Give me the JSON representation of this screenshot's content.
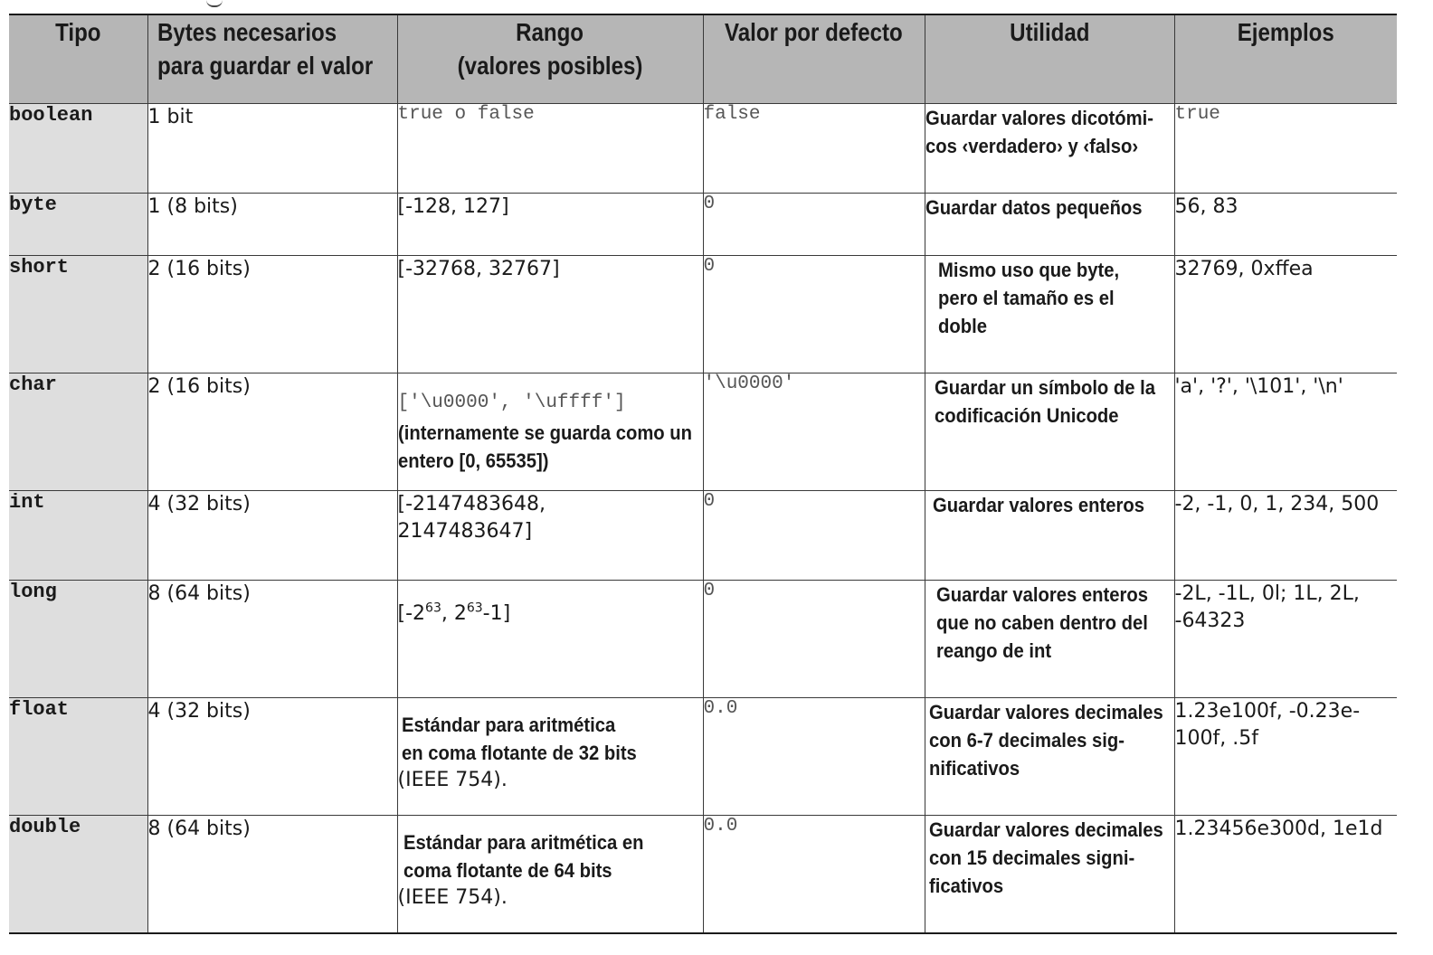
{
  "headers": {
    "tipo": "Tipo",
    "bytes_line1": "Bytes necesarios",
    "bytes_line2": "para guardar el valor",
    "rango_line1": "Rango",
    "rango_line2": "(valores posibles)",
    "defecto": "Valor por defecto",
    "utilidad": "Utilidad",
    "ejemplos": "Ejemplos"
  },
  "rows": {
    "boolean": {
      "tipo": "boolean",
      "bytes": "1 bit",
      "rango": "true o false",
      "defecto": "false",
      "utilidad": "Guardar valores dicotómi-cos ‹verdadero› y ‹falso›",
      "ejemplos": "true"
    },
    "byte": {
      "tipo": "byte",
      "bytes": "1 (8 bits)",
      "rango": "[-128, 127]",
      "defecto": "0",
      "utilidad": "Guardar datos pequeños",
      "ejemplos": "56, 83"
    },
    "short": {
      "tipo": "short",
      "bytes": "2 (16 bits)",
      "rango": "[-32768, 32767]",
      "defecto": "0",
      "utilidad": "Mismo uso que byte, pero el tamaño es el doble",
      "ejemplos": "32769, 0xffea"
    },
    "char": {
      "tipo": "char",
      "bytes": "2 (16 bits)",
      "rango_code": "['\\u0000', '\\uffff']",
      "rango_note": "(internamente se guarda como un entero [0, 65535])",
      "defecto": "'\\u0000'",
      "utilidad": "Guardar un símbolo de la codificación Unicode",
      "ejemplos": "'a', '?', '\\101', '\\n'"
    },
    "int": {
      "tipo": "int",
      "bytes": "4 (32 bits)",
      "rango": "[-2147483648, 2147483647]",
      "defecto": "0",
      "utilidad": "Guardar valores enteros",
      "ejemplos": "-2, -1, 0, 1, 234, 500"
    },
    "long": {
      "tipo": "long",
      "bytes": "8 (64 bits)",
      "rango_a": "[-2",
      "rango_exp1": "63",
      "rango_b": ", 2",
      "rango_exp2": "63",
      "rango_c": "-1]",
      "defecto": "0",
      "utilidad": "Guardar valores enteros que no caben dentro del reango de int",
      "ejemplos": "-2L, -1L, 0l; 1L, 2L, -64323"
    },
    "float": {
      "tipo": "float",
      "bytes": "4 (32 bits)",
      "rango_bold": "Estándar para aritmética en coma flotante de 32 bits",
      "rango_plain": "(IEEE 754).",
      "defecto": "0.0",
      "utilidad": "Guardar valores decimales con 6-7 decimales sig-nificativos",
      "ejemplos": "1.23e100f, -0.23e-100f, .5f"
    },
    "double": {
      "tipo": "double",
      "bytes": "8 (64 bits)",
      "rango_bold": "Estándar para aritmética en coma flotante de 64 bits",
      "rango_plain": "(IEEE 754).",
      "defecto": "0.0",
      "utilidad": "Guardar valores decimales con 15 decimales signi-ficativos",
      "ejemplos": "1.23456e300d, 1e1d"
    }
  }
}
